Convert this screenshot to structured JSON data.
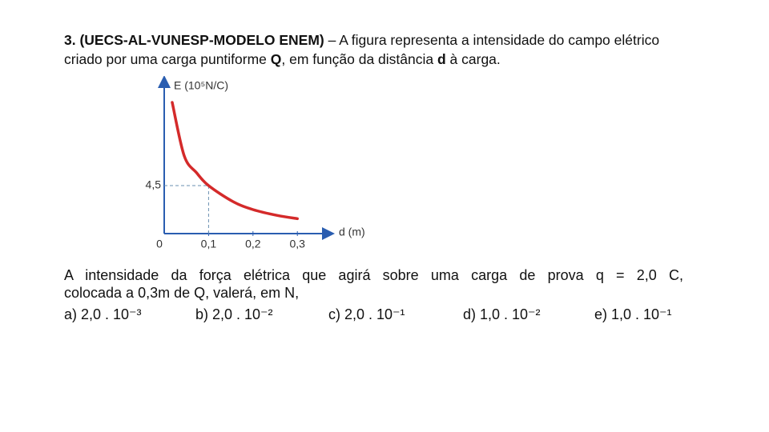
{
  "header": {
    "runs": [
      "3. (UECS-AL-VUNESP-MODELO ENEM)",
      " – A figura representa a intensidade do campo elétrico criado por uma carga puntiforme ",
      "Q",
      ", em função da distância ",
      "d",
      " à carga."
    ]
  },
  "chart_data": {
    "type": "line",
    "ylabel": "E (10⁵N/C)",
    "xlabel": "d (m)",
    "x": [
      0.018,
      0.045,
      0.073,
      0.1,
      0.155,
      0.2,
      0.255,
      0.3
    ],
    "series": [
      {
        "color": "#d42a2a",
        "values": [
          12.3,
          7.3,
          5.7,
          4.5,
          3.0,
          2.25,
          1.7,
          1.4
        ]
      }
    ],
    "xlim": [
      0,
      0.37
    ],
    "ylim": [
      0,
      13.5
    ],
    "xticks": [
      0,
      {
        "value": 0.1,
        "label": "0,1"
      },
      {
        "value": 0.2,
        "label": "0,2"
      },
      {
        "value": 0.3,
        "label": "0,3"
      }
    ],
    "yticks": [
      {
        "value": 4.5,
        "label": "4,5"
      }
    ]
  },
  "question": {
    "lines": [
      "A intensidade da força elétrica que agirá sobre uma carga de prova q = 2,0 C,",
      "colocada a 0,3m de Q, valerá, em N,"
    ]
  },
  "options": [
    "a) 2,0 . 10⁻³",
    "b) 2,0 . 10⁻²",
    "c) 2,0 . 10⁻¹",
    "d) 1,0 . 10⁻²",
    "e) 1,0 . 10⁻¹"
  ]
}
